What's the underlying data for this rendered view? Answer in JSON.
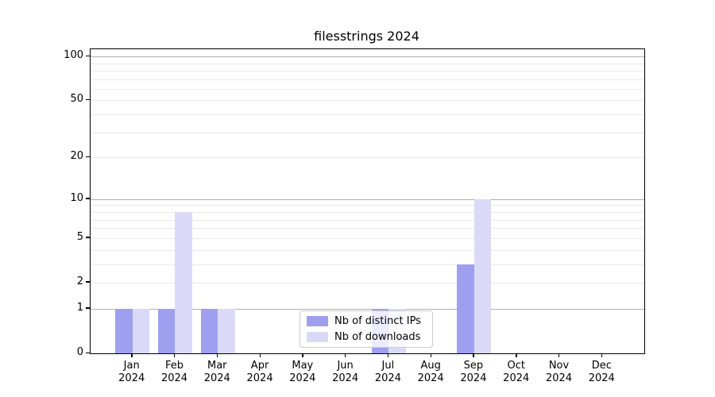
{
  "figure": {
    "background": "#ffffff",
    "title": "filesstrings 2024"
  },
  "chart_data": {
    "type": "bar",
    "title": "filesstrings 2024",
    "xlabel": "",
    "ylabel": "",
    "categories": [
      "Jan 2024",
      "Feb 2024",
      "Mar 2024",
      "Apr 2024",
      "May 2024",
      "Jun 2024",
      "Jul 2024",
      "Aug 2024",
      "Sep 2024",
      "Oct 2024",
      "Nov 2024",
      "Dec 2024"
    ],
    "x_tick_line1": [
      "Jan",
      "Feb",
      "Mar",
      "Apr",
      "May",
      "Jun",
      "Jul",
      "Aug",
      "Sep",
      "Oct",
      "Nov",
      "Dec"
    ],
    "x_tick_line2": "2024",
    "series": [
      {
        "name": "Nb of distinct IPs",
        "color": "#9f9ff0",
        "values": [
          1,
          1,
          1,
          0,
          0,
          0,
          1,
          0,
          3,
          0,
          0,
          0
        ]
      },
      {
        "name": "Nb of downloads",
        "color": "#dadaf8",
        "values": [
          1,
          8,
          1,
          0,
          0,
          0,
          1,
          0,
          10,
          0,
          0,
          0
        ]
      }
    ],
    "yscale": "log1p",
    "ylim": [
      0,
      112
    ],
    "y_ticks": [
      0,
      1,
      2,
      5,
      10,
      20,
      50,
      100
    ],
    "grid": {
      "major": [
        1,
        10,
        100
      ],
      "minor": [
        2,
        3,
        4,
        5,
        6,
        7,
        8,
        9,
        20,
        30,
        40,
        50,
        60,
        70,
        80,
        90
      ],
      "major_color": "#b0b0b0",
      "minor_color": "#e9e9e9"
    },
    "legend": {
      "position": "lower center",
      "items": [
        "Nb of distinct IPs",
        "Nb of downloads"
      ]
    }
  }
}
